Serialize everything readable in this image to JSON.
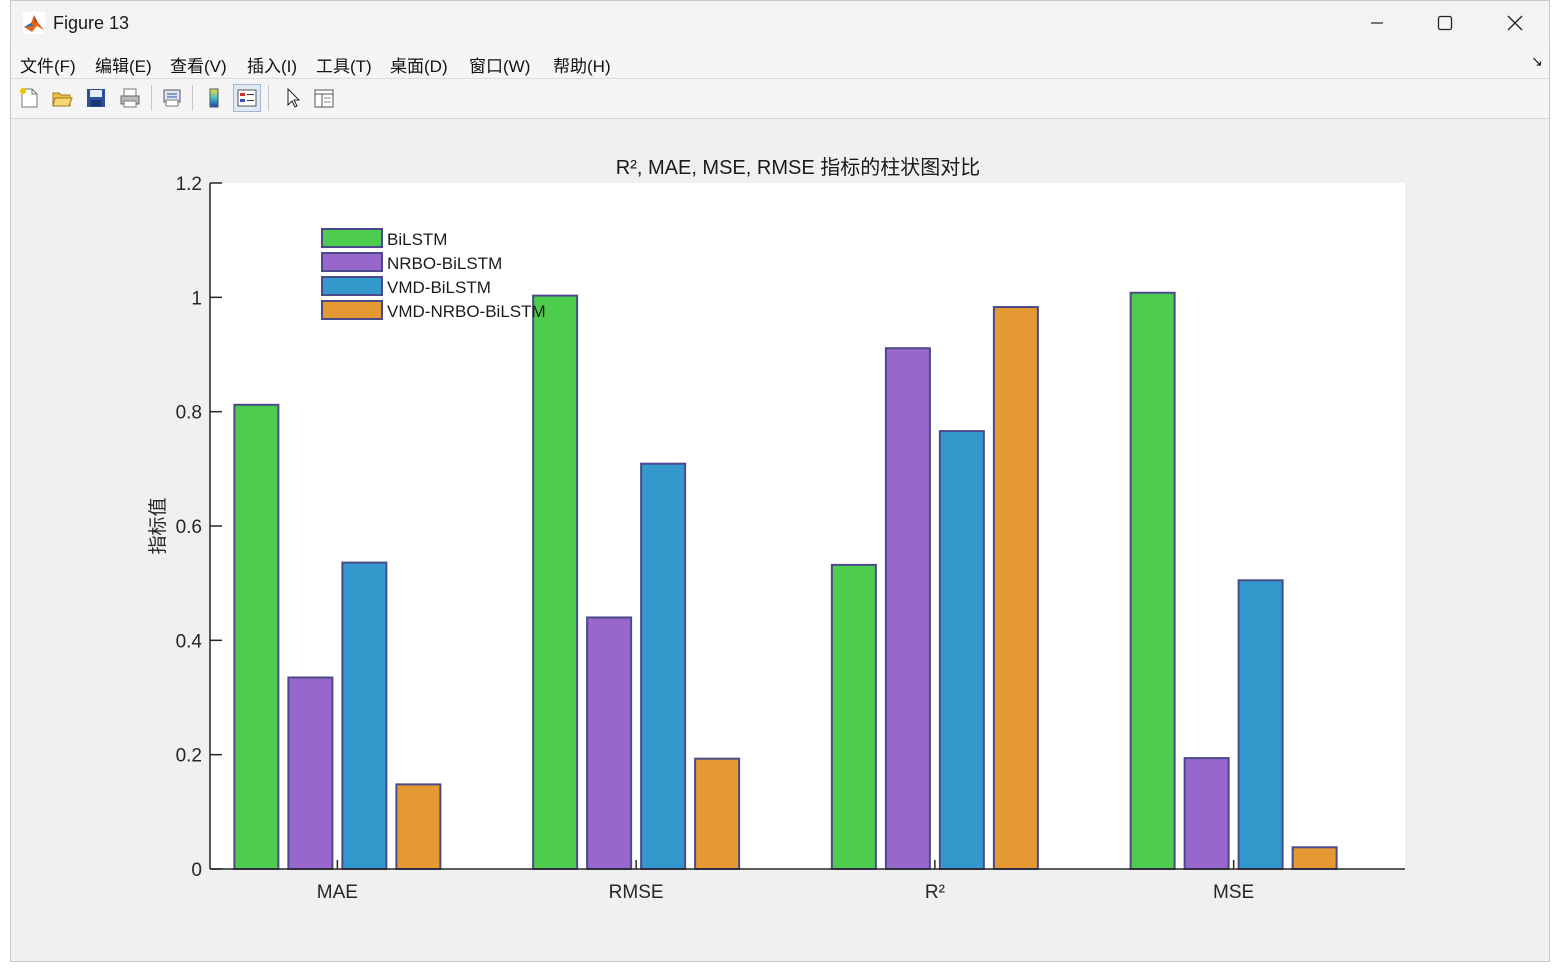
{
  "window": {
    "title": "Figure 13"
  },
  "menu": [
    {
      "label": "文件(F)"
    },
    {
      "label": "编辑(E)"
    },
    {
      "label": "查看(V)"
    },
    {
      "label": "插入(I)"
    },
    {
      "label": "工具(T)"
    },
    {
      "label": "桌面(D)"
    },
    {
      "label": "窗口(W)"
    },
    {
      "label": "帮助(H)"
    }
  ],
  "toolbar": [
    {
      "icon": "new-figure-icon"
    },
    {
      "icon": "open-icon"
    },
    {
      "icon": "save-icon"
    },
    {
      "icon": "print-icon"
    },
    {
      "icon": "print-preview-icon"
    },
    {
      "icon": "colorbar-icon"
    },
    {
      "icon": "legend-icon"
    },
    {
      "icon": "pointer-icon"
    },
    {
      "icon": "property-editor-icon"
    }
  ],
  "chart_data": {
    "type": "bar",
    "title": "R², MAE, MSE, RMSE 指标的柱状图对比",
    "xlabel": "",
    "ylabel": "指标值",
    "categories": [
      "MAE",
      "RMSE",
      "R²",
      "MSE"
    ],
    "ylim": [
      0,
      1.2
    ],
    "yticks": [
      "0",
      "0.2",
      "0.4",
      "0.6",
      "0.8",
      "1",
      "1.2"
    ],
    "legend_position": "top-left",
    "series": [
      {
        "name": "BiLSTM",
        "color": "#4dcc4d",
        "values": [
          0.812,
          1.003,
          0.532,
          1.008
        ]
      },
      {
        "name": "NRBO-BiLSTM",
        "color": "#9966cc",
        "values": [
          0.335,
          0.44,
          0.911,
          0.194
        ]
      },
      {
        "name": "VMD-BiLSTM",
        "color": "#3399cc",
        "values": [
          0.536,
          0.709,
          0.766,
          0.505
        ]
      },
      {
        "name": "VMD-NRBO-BiLSTM",
        "color": "#e69933",
        "values": [
          0.148,
          0.193,
          0.983,
          0.038
        ]
      }
    ]
  }
}
